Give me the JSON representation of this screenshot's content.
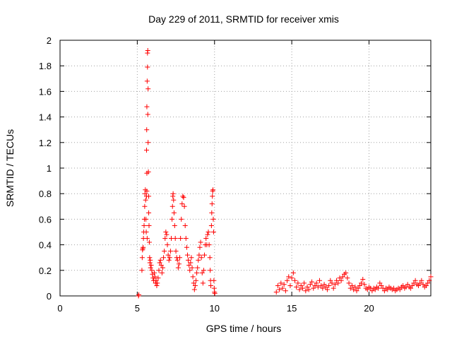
{
  "chart_data": {
    "type": "scatter",
    "title": "Day 229 of 2011, SRMTID for receiver xmis",
    "xlabel": "GPS time / hours",
    "ylabel": "SRMTID / TECUs",
    "xlim": [
      0,
      24
    ],
    "ylim": [
      0,
      2
    ],
    "x_ticks": [
      0,
      5,
      10,
      15,
      20
    ],
    "x_tick_labels": [
      "0",
      "5",
      "10",
      "15",
      "20"
    ],
    "y_ticks": [
      0,
      0.2,
      0.4,
      0.6,
      0.8,
      1,
      1.2,
      1.4,
      1.6,
      1.8,
      2
    ],
    "y_tick_labels": [
      "0",
      "0.2",
      "0.4",
      "0.6",
      "0.8",
      "1",
      "1.2",
      "1.4",
      "1.6",
      "1.8",
      "2"
    ],
    "grid": true,
    "marker": "+",
    "color": "#ff0000",
    "series": [
      {
        "name": "SRMTID",
        "points": [
          [
            5.08,
            0.0
          ],
          [
            5.1,
            0.01
          ],
          [
            5.3,
            0.2
          ],
          [
            5.32,
            0.3
          ],
          [
            5.34,
            0.36
          ],
          [
            5.36,
            0.37
          ],
          [
            5.38,
            0.38
          ],
          [
            5.4,
            0.45
          ],
          [
            5.42,
            0.5
          ],
          [
            5.44,
            0.55
          ],
          [
            5.46,
            0.6
          ],
          [
            5.48,
            0.7
          ],
          [
            5.5,
            0.8
          ],
          [
            5.52,
            0.83
          ],
          [
            5.54,
            0.75
          ],
          [
            5.56,
            0.6
          ],
          [
            5.58,
            0.5
          ],
          [
            5.6,
            0.78
          ],
          [
            5.62,
            0.82
          ],
          [
            5.64,
            0.45
          ],
          [
            5.62,
            0.96
          ],
          [
            5.6,
            1.14
          ],
          [
            5.61,
            1.3
          ],
          [
            5.62,
            1.48
          ],
          [
            5.64,
            1.68
          ],
          [
            5.66,
            1.79
          ],
          [
            5.66,
            1.9
          ],
          [
            5.68,
            1.92
          ],
          [
            5.7,
            1.62
          ],
          [
            5.68,
            1.42
          ],
          [
            5.7,
            1.2
          ],
          [
            5.72,
            0.97
          ],
          [
            5.74,
            0.78
          ],
          [
            5.74,
            0.65
          ],
          [
            5.76,
            0.55
          ],
          [
            5.78,
            0.42
          ],
          [
            5.8,
            0.3
          ],
          [
            5.82,
            0.26
          ],
          [
            5.84,
            0.28
          ],
          [
            5.86,
            0.22
          ],
          [
            5.9,
            0.24
          ],
          [
            5.94,
            0.2
          ],
          [
            5.98,
            0.17
          ],
          [
            6.02,
            0.14
          ],
          [
            6.06,
            0.12
          ],
          [
            6.1,
            0.18
          ],
          [
            6.14,
            0.15
          ],
          [
            6.18,
            0.1
          ],
          [
            6.22,
            0.12
          ],
          [
            6.26,
            0.08
          ],
          [
            6.3,
            0.1
          ],
          [
            6.35,
            0.14
          ],
          [
            6.4,
            0.2
          ],
          [
            6.45,
            0.26
          ],
          [
            6.5,
            0.28
          ],
          [
            6.55,
            0.24
          ],
          [
            6.6,
            0.18
          ],
          [
            6.65,
            0.22
          ],
          [
            6.7,
            0.3
          ],
          [
            6.75,
            0.35
          ],
          [
            6.8,
            0.45
          ],
          [
            6.85,
            0.5
          ],
          [
            6.9,
            0.48
          ],
          [
            6.95,
            0.4
          ],
          [
            7.0,
            0.32
          ],
          [
            7.05,
            0.28
          ],
          [
            7.1,
            0.3
          ],
          [
            7.15,
            0.35
          ],
          [
            7.2,
            0.45
          ],
          [
            7.25,
            0.6
          ],
          [
            7.28,
            0.7
          ],
          [
            7.3,
            0.78
          ],
          [
            7.32,
            0.8
          ],
          [
            7.35,
            0.75
          ],
          [
            7.38,
            0.65
          ],
          [
            7.42,
            0.55
          ],
          [
            7.46,
            0.45
          ],
          [
            7.5,
            0.35
          ],
          [
            7.55,
            0.3
          ],
          [
            7.6,
            0.28
          ],
          [
            7.65,
            0.22
          ],
          [
            7.7,
            0.25
          ],
          [
            7.75,
            0.3
          ],
          [
            7.8,
            0.45
          ],
          [
            7.85,
            0.6
          ],
          [
            7.9,
            0.72
          ],
          [
            7.95,
            0.78
          ],
          [
            8.0,
            0.77
          ],
          [
            8.05,
            0.7
          ],
          [
            8.1,
            0.55
          ],
          [
            8.15,
            0.45
          ],
          [
            8.2,
            0.38
          ],
          [
            8.25,
            0.32
          ],
          [
            8.3,
            0.28
          ],
          [
            8.35,
            0.24
          ],
          [
            8.4,
            0.2
          ],
          [
            8.45,
            0.26
          ],
          [
            8.5,
            0.3
          ],
          [
            8.55,
            0.22
          ],
          [
            8.6,
            0.15
          ],
          [
            8.65,
            0.1
          ],
          [
            8.7,
            0.05
          ],
          [
            8.75,
            0.08
          ],
          [
            8.8,
            0.12
          ],
          [
            8.85,
            0.18
          ],
          [
            8.9,
            0.22
          ],
          [
            8.95,
            0.28
          ],
          [
            9.0,
            0.32
          ],
          [
            9.05,
            0.38
          ],
          [
            9.1,
            0.42
          ],
          [
            9.15,
            0.3
          ],
          [
            9.2,
            0.18
          ],
          [
            9.25,
            0.1
          ],
          [
            9.3,
            0.2
          ],
          [
            9.35,
            0.32
          ],
          [
            9.4,
            0.4
          ],
          [
            9.45,
            0.45
          ],
          [
            9.5,
            0.4
          ],
          [
            9.55,
            0.48
          ],
          [
            9.6,
            0.5
          ],
          [
            9.65,
            0.4
          ],
          [
            9.7,
            0.3
          ],
          [
            9.72,
            0.2
          ],
          [
            9.74,
            0.12
          ],
          [
            9.76,
            0.08
          ],
          [
            9.8,
            0.55
          ],
          [
            9.82,
            0.65
          ],
          [
            9.84,
            0.72
          ],
          [
            9.86,
            0.78
          ],
          [
            9.88,
            0.82
          ],
          [
            9.9,
            0.83
          ],
          [
            9.92,
            0.6
          ],
          [
            9.94,
            0.5
          ],
          [
            9.96,
            0.12
          ],
          [
            9.98,
            0.06
          ],
          [
            10.0,
            0.03
          ],
          [
            10.02,
            0.02
          ],
          [
            14.0,
            0.03
          ],
          [
            14.1,
            0.08
          ],
          [
            14.2,
            0.05
          ],
          [
            14.3,
            0.1
          ],
          [
            14.4,
            0.06
          ],
          [
            14.5,
            0.09
          ],
          [
            14.6,
            0.04
          ],
          [
            14.7,
            0.12
          ],
          [
            14.8,
            0.15
          ],
          [
            14.9,
            0.08
          ],
          [
            15.0,
            0.14
          ],
          [
            15.1,
            0.18
          ],
          [
            15.2,
            0.12
          ],
          [
            15.3,
            0.07
          ],
          [
            15.4,
            0.1
          ],
          [
            15.5,
            0.05
          ],
          [
            15.6,
            0.08
          ],
          [
            15.7,
            0.06
          ],
          [
            15.8,
            0.1
          ],
          [
            15.9,
            0.04
          ],
          [
            16.0,
            0.07
          ],
          [
            16.1,
            0.05
          ],
          [
            16.2,
            0.09
          ],
          [
            16.3,
            0.11
          ],
          [
            16.4,
            0.06
          ],
          [
            16.5,
            0.08
          ],
          [
            16.6,
            0.1
          ],
          [
            16.7,
            0.07
          ],
          [
            16.8,
            0.12
          ],
          [
            16.9,
            0.08
          ],
          [
            17.0,
            0.06
          ],
          [
            17.1,
            0.09
          ],
          [
            17.2,
            0.07
          ],
          [
            17.3,
            0.05
          ],
          [
            17.4,
            0.08
          ],
          [
            17.5,
            0.12
          ],
          [
            17.6,
            0.1
          ],
          [
            17.7,
            0.06
          ],
          [
            17.8,
            0.09
          ],
          [
            17.9,
            0.12
          ],
          [
            18.0,
            0.1
          ],
          [
            18.1,
            0.14
          ],
          [
            18.2,
            0.12
          ],
          [
            18.3,
            0.15
          ],
          [
            18.4,
            0.17
          ],
          [
            18.5,
            0.18
          ],
          [
            18.6,
            0.14
          ],
          [
            18.7,
            0.1
          ],
          [
            18.8,
            0.06
          ],
          [
            18.9,
            0.08
          ],
          [
            19.0,
            0.05
          ],
          [
            19.1,
            0.07
          ],
          [
            19.2,
            0.04
          ],
          [
            19.3,
            0.06
          ],
          [
            19.4,
            0.08
          ],
          [
            19.5,
            0.1
          ],
          [
            19.6,
            0.13
          ],
          [
            19.7,
            0.09
          ],
          [
            19.8,
            0.06
          ],
          [
            19.9,
            0.05
          ],
          [
            20.0,
            0.07
          ],
          [
            20.1,
            0.06
          ],
          [
            20.2,
            0.04
          ],
          [
            20.3,
            0.06
          ],
          [
            20.4,
            0.05
          ],
          [
            20.5,
            0.07
          ],
          [
            20.6,
            0.06
          ],
          [
            20.7,
            0.1
          ],
          [
            20.8,
            0.08
          ],
          [
            20.9,
            0.06
          ],
          [
            21.0,
            0.04
          ],
          [
            21.1,
            0.06
          ],
          [
            21.2,
            0.05
          ],
          [
            21.3,
            0.07
          ],
          [
            21.4,
            0.06
          ],
          [
            21.5,
            0.05
          ],
          [
            21.6,
            0.06
          ],
          [
            21.7,
            0.04
          ],
          [
            21.8,
            0.05
          ],
          [
            21.9,
            0.06
          ],
          [
            22.0,
            0.05
          ],
          [
            22.1,
            0.07
          ],
          [
            22.2,
            0.08
          ],
          [
            22.3,
            0.06
          ],
          [
            22.4,
            0.07
          ],
          [
            22.5,
            0.09
          ],
          [
            22.6,
            0.07
          ],
          [
            22.7,
            0.06
          ],
          [
            22.8,
            0.08
          ],
          [
            22.9,
            0.1
          ],
          [
            23.0,
            0.12
          ],
          [
            23.1,
            0.09
          ],
          [
            23.2,
            0.08
          ],
          [
            23.3,
            0.1
          ],
          [
            23.4,
            0.12
          ],
          [
            23.5,
            0.09
          ],
          [
            23.6,
            0.07
          ],
          [
            23.7,
            0.08
          ],
          [
            23.8,
            0.1
          ],
          [
            23.9,
            0.12
          ],
          [
            24.0,
            0.15
          ]
        ]
      }
    ]
  }
}
